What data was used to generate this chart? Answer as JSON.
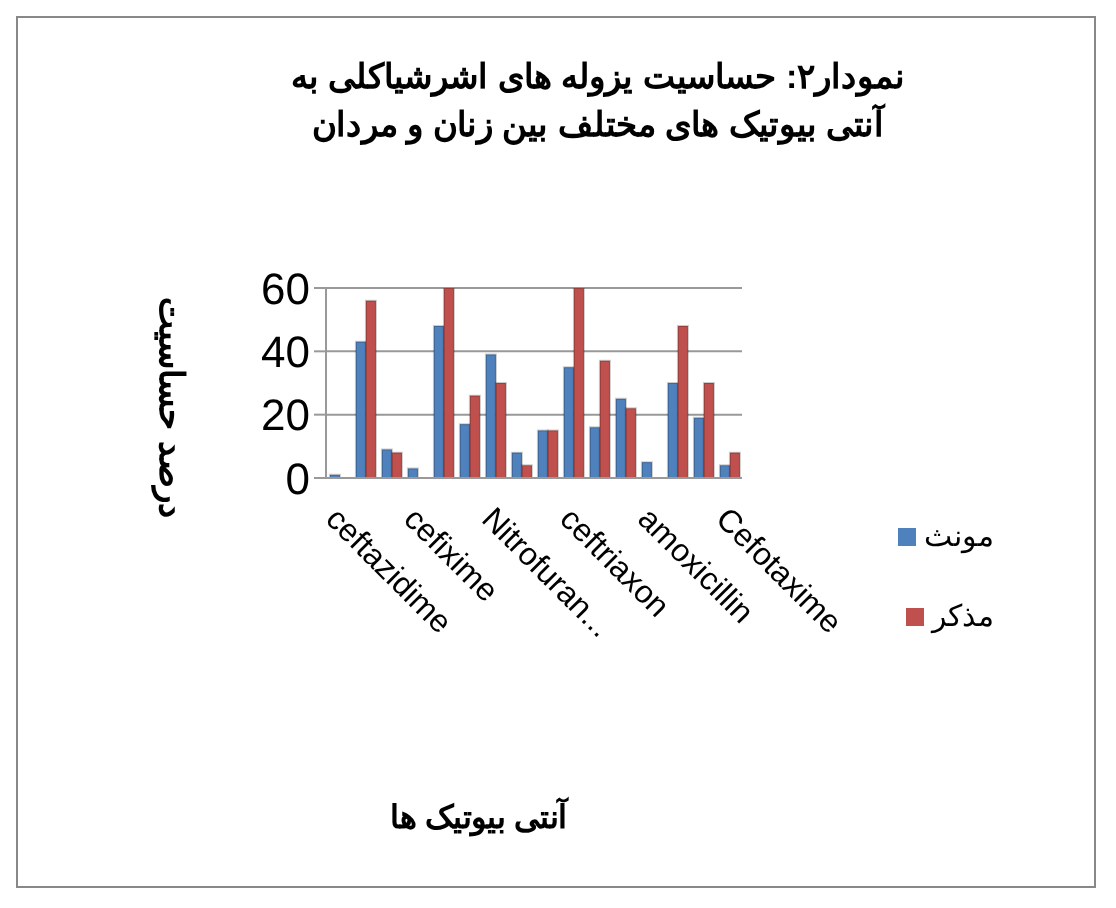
{
  "chart_data": {
    "type": "bar",
    "title": "نمودار۲: حساسیت یزوله های اشرشیاکلی به آنتی بیوتیک های مختلف بین زنان و مردان",
    "xlabel": "آنتی بیوتیک ها",
    "ylabel": "درصد حساسیت",
    "categories": [
      "ceftazidime",
      null,
      null,
      "cefixime",
      null,
      null,
      "Nitrofuran...",
      null,
      null,
      "ceftriaxon",
      null,
      null,
      "amoxicillin",
      null,
      null,
      "Cefotaxime"
    ],
    "series": [
      {
        "name": "مونث",
        "color": "#4f81bd",
        "values": [
          1,
          43,
          9,
          3,
          48,
          17,
          39,
          8,
          15,
          35,
          16,
          25,
          5,
          30,
          19,
          4
        ]
      },
      {
        "name": "مذکر",
        "color": "#c0504d",
        "values": [
          0,
          56,
          8,
          0,
          60,
          26,
          30,
          4,
          15,
          60,
          37,
          22,
          0,
          48,
          30,
          8
        ]
      }
    ],
    "ylim": [
      0,
      60
    ],
    "yticks": [
      0,
      20,
      40,
      60
    ],
    "grid": "y",
    "legend": "right"
  }
}
